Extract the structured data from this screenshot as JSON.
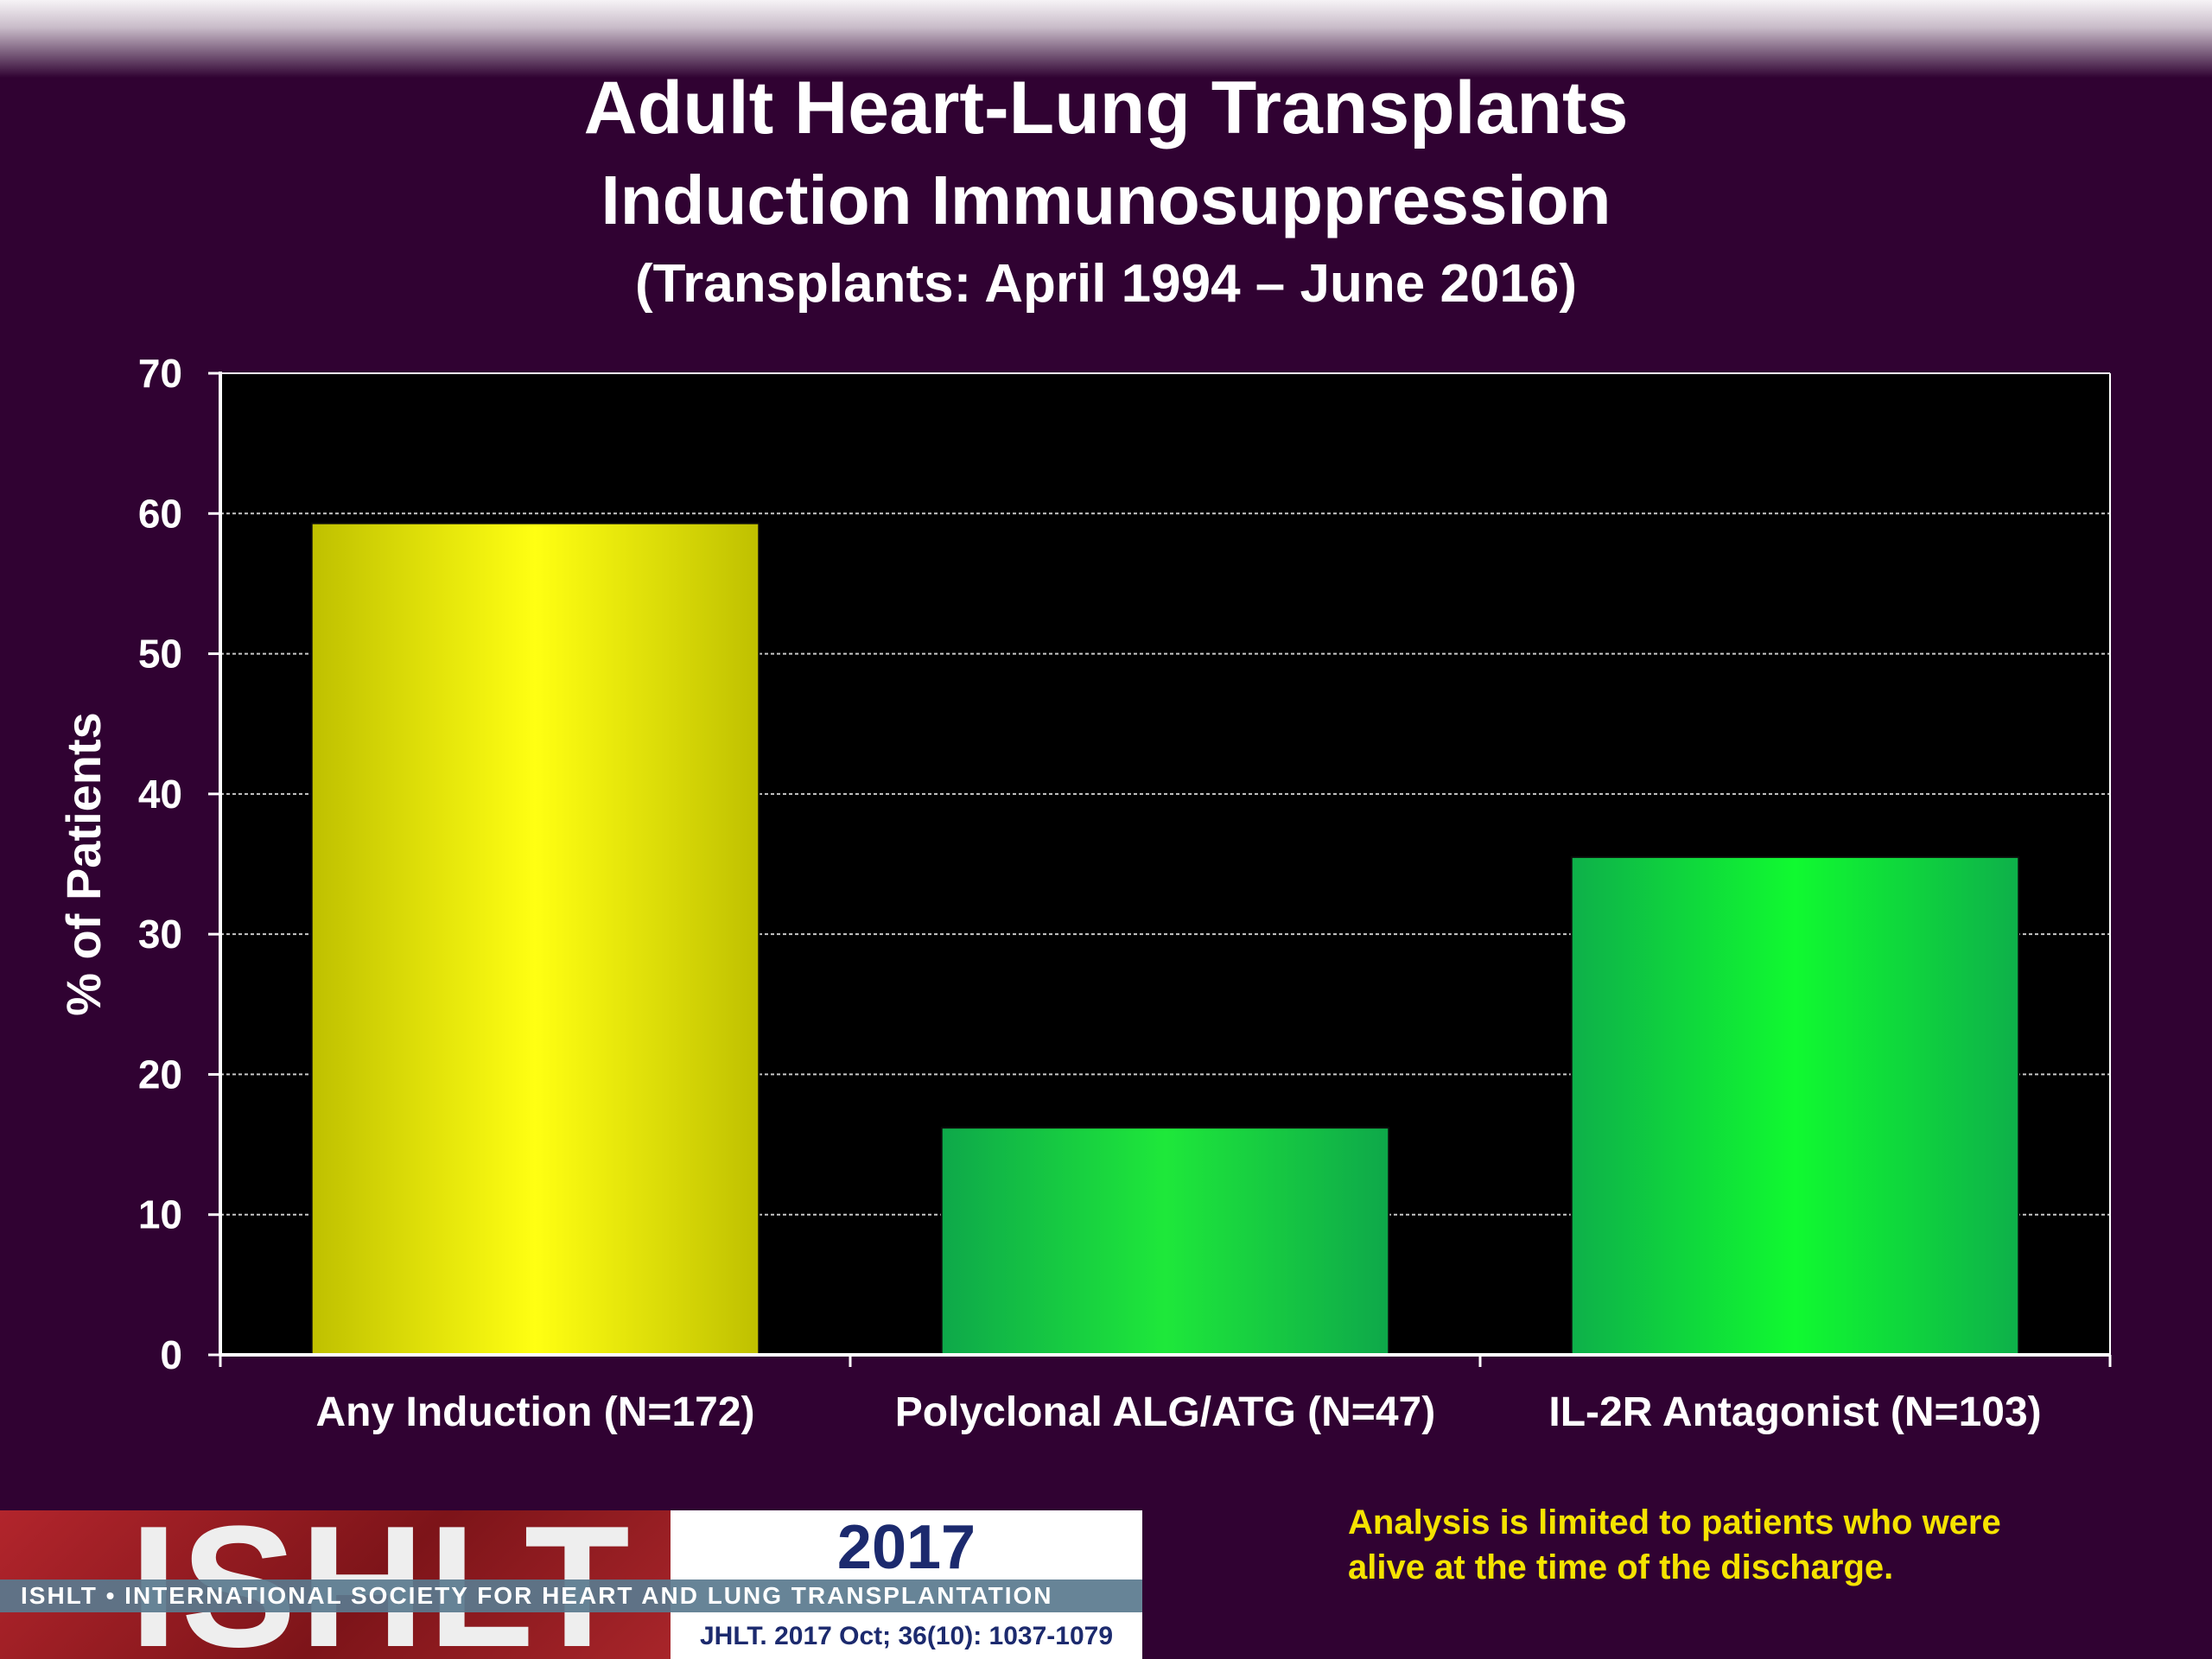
{
  "chart_data": {
    "type": "bar",
    "title": "Adult Heart-Lung Transplants",
    "subtitle": "Induction Immunosuppression",
    "subtitle2": "(Transplants: April 1994 – June 2016)",
    "xlabel": "",
    "ylabel": "% of Patients",
    "categories": [
      "Any Induction (N=172)",
      "Polyclonal ALG/ATG (N=47)",
      "IL-2R Antagonist (N=103)"
    ],
    "values": [
      59.3,
      16.2,
      35.5
    ],
    "ylim": [
      0,
      70
    ],
    "yticks": [
      0,
      10,
      20,
      30,
      40,
      50,
      60,
      70
    ],
    "grid": true,
    "bar_colors": [
      "#f2ee00",
      "#14d44a",
      "#14e83a"
    ]
  },
  "footer": {
    "note_line1": "Analysis is limited to patients who were",
    "note_line2": "alive at the time of the discharge."
  },
  "logo": {
    "letters": "ISHLT",
    "year": "2017",
    "band_text": "ISHLT • INTERNATIONAL SOCIETY FOR HEART AND LUNG TRANSPLANTATION",
    "reference": "JHLT. 2017 Oct; 36(10): 1037-1079"
  }
}
